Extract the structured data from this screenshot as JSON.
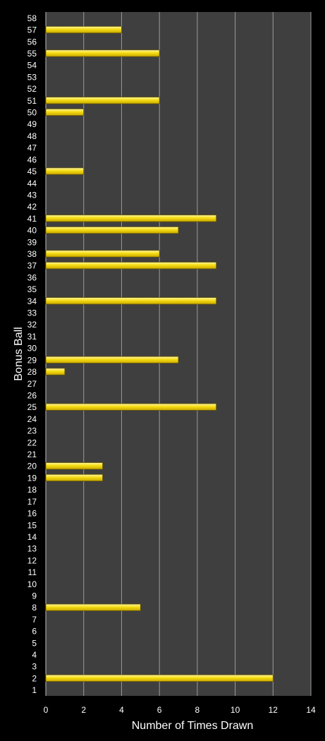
{
  "chart_data": {
    "type": "bar",
    "orientation": "horizontal",
    "xlabel": "Number of Times Drawn",
    "ylabel": "Bonus Ball",
    "xlim": [
      0,
      14
    ],
    "xticks": [
      0,
      2,
      4,
      6,
      8,
      10,
      12,
      14
    ],
    "grid": true,
    "colors": {
      "background": "#000000",
      "plot_area": "#3f3f3f",
      "gridline": "#9a9a9a",
      "bar_fill": "#f5dc12",
      "bar_highlight": "#fff7a6",
      "bar_stroke": "#6b5a00",
      "text": "#ffffff"
    },
    "categories": [
      "1",
      "2",
      "3",
      "4",
      "5",
      "6",
      "7",
      "8",
      "9",
      "10",
      "11",
      "12",
      "13",
      "14",
      "15",
      "16",
      "17",
      "18",
      "19",
      "20",
      "21",
      "22",
      "23",
      "24",
      "25",
      "26",
      "27",
      "28",
      "29",
      "30",
      "31",
      "32",
      "33",
      "34",
      "35",
      "36",
      "37",
      "38",
      "39",
      "40",
      "41",
      "42",
      "43",
      "44",
      "45",
      "46",
      "47",
      "48",
      "49",
      "50",
      "51",
      "52",
      "53",
      "54",
      "55",
      "56",
      "57",
      "58"
    ],
    "values": [
      0,
      12,
      0,
      0,
      0,
      0,
      0,
      5,
      0,
      0,
      0,
      0,
      0,
      0,
      0,
      0,
      0,
      0,
      3,
      3,
      0,
      0,
      0,
      0,
      9,
      0,
      0,
      1,
      7,
      0,
      0,
      0,
      0,
      9,
      0,
      0,
      9,
      6,
      0,
      7,
      9,
      0,
      0,
      0,
      2,
      0,
      0,
      0,
      0,
      2,
      6,
      0,
      0,
      0,
      6,
      0,
      4,
      0
    ]
  }
}
